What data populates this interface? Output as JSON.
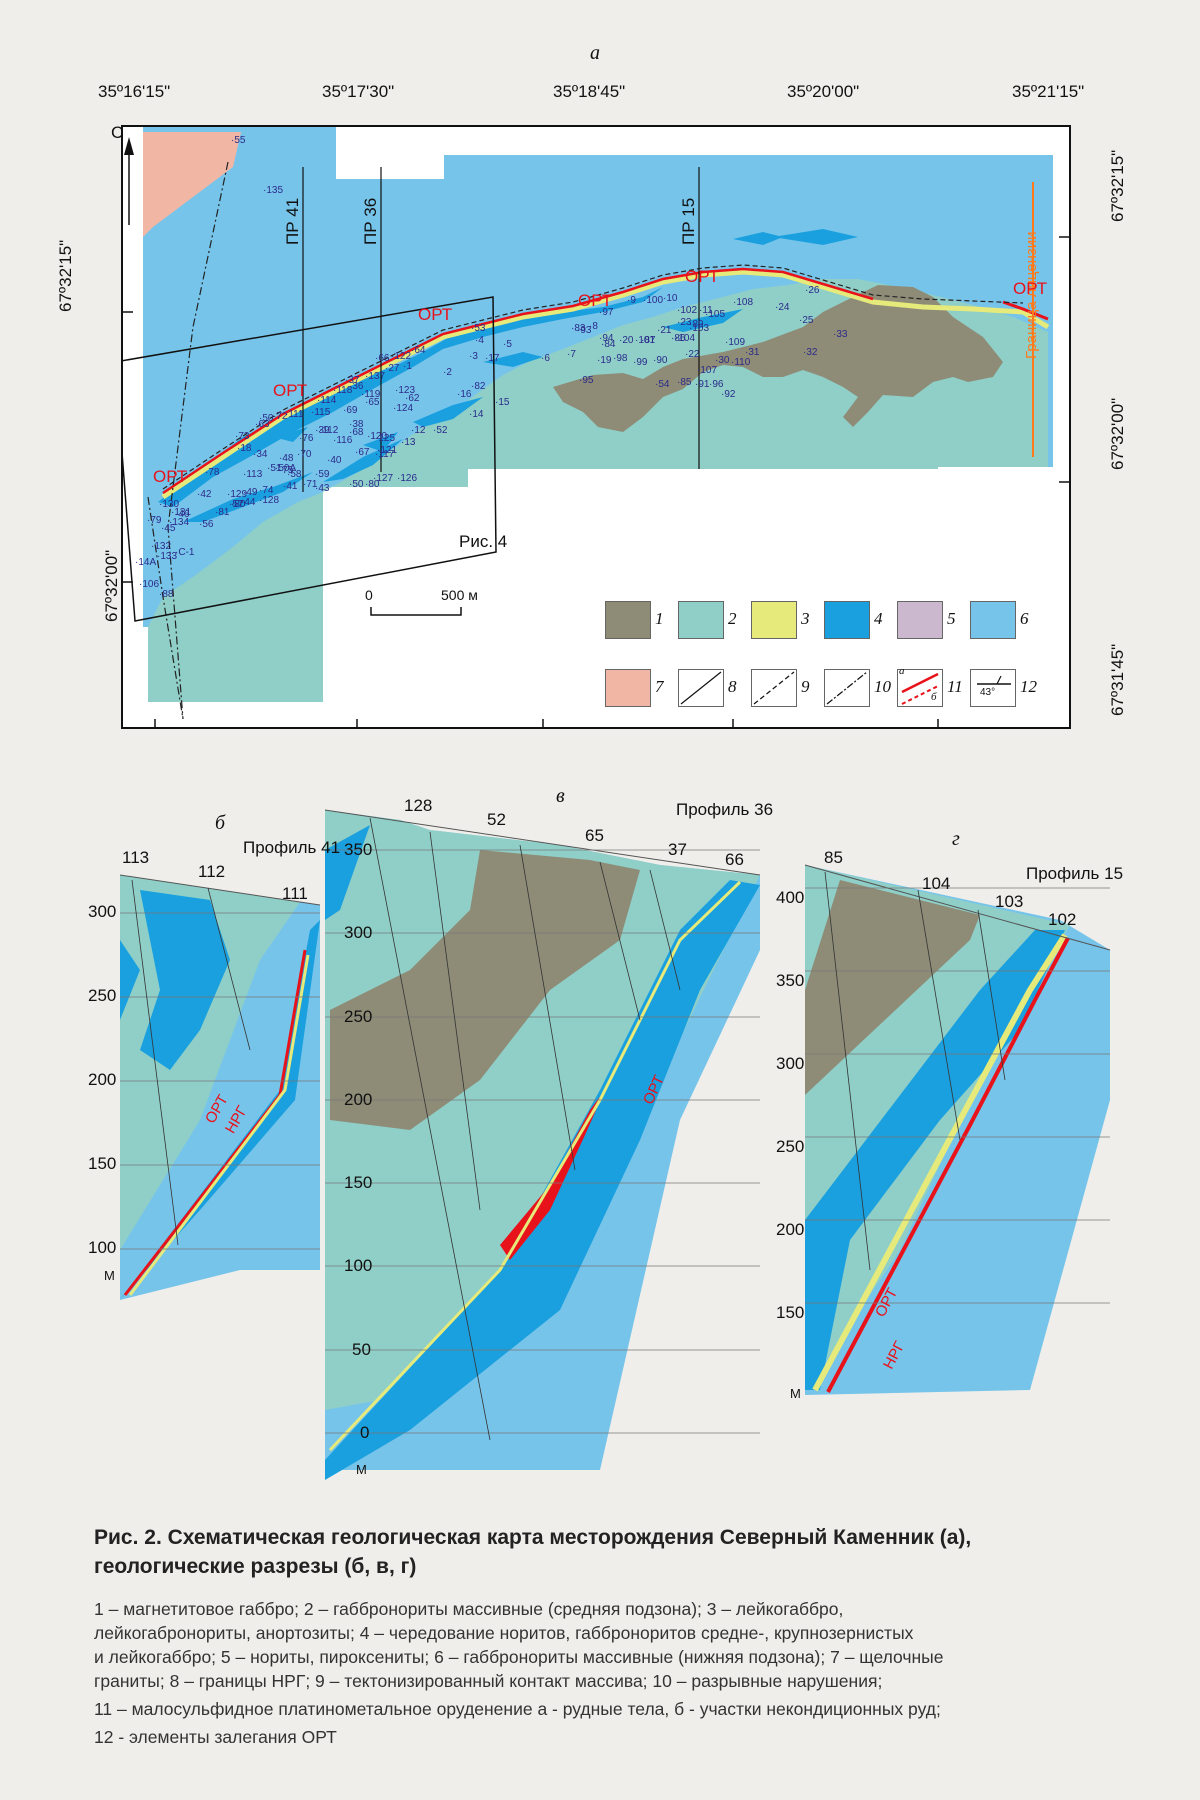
{
  "colors": {
    "magnetite_gabbro": "#8e8c77",
    "gabbronorite_middle": "#8fcfc8",
    "leucogabbro": "#e6ea7a",
    "alternation": "#1aa0df",
    "norites": "#cbb8cf",
    "gabbronorite_lower": "#77c4ea",
    "alkaline_granite": "#f2b7a4",
    "ore_red": "#e8121b",
    "license_orange": "#ff7a1a"
  },
  "map": {
    "panel_letter": "а",
    "lon_labels": [
      "35º16'15\"",
      "35º17'30\"",
      "35º18'45\"",
      "35º20'00\"",
      "35º21'15\""
    ],
    "lat_left": [
      "67º32'15\"",
      "67º32'00\""
    ],
    "lat_right": [
      "67º32'15\"",
      "67º32'00\"",
      "67º31'45\""
    ],
    "north": "С",
    "license_label": "Граница лицензии",
    "profiles": [
      "ПР 41",
      "ПР 36",
      "ПР 15"
    ],
    "ore_label": "ОРТ",
    "fig_ref": "Рис. 4",
    "scale_zero": "0",
    "scale_label": "500 м",
    "boreholes": [
      {
        "n": "55"
      },
      {
        "n": "135"
      },
      {
        "n": "26"
      },
      {
        "n": "25"
      },
      {
        "n": "33"
      },
      {
        "n": "24"
      },
      {
        "n": "32"
      },
      {
        "n": "31"
      },
      {
        "n": "108"
      },
      {
        "n": "109"
      },
      {
        "n": "110"
      },
      {
        "n": "30"
      },
      {
        "n": "92"
      },
      {
        "n": "96"
      },
      {
        "n": "91"
      },
      {
        "n": "85"
      },
      {
        "n": "54"
      },
      {
        "n": "107"
      },
      {
        "n": "22"
      },
      {
        "n": "86"
      },
      {
        "n": "89"
      },
      {
        "n": "23"
      },
      {
        "n": "105"
      },
      {
        "n": "103"
      },
      {
        "n": "104"
      },
      {
        "n": "102"
      },
      {
        "n": "11"
      },
      {
        "n": "21"
      },
      {
        "n": "100"
      },
      {
        "n": "87"
      },
      {
        "n": "10"
      },
      {
        "n": "90"
      },
      {
        "n": "99"
      },
      {
        "n": "98"
      },
      {
        "n": "19"
      },
      {
        "n": "101"
      },
      {
        "n": "20"
      },
      {
        "n": "9"
      },
      {
        "n": "97"
      },
      {
        "n": "8"
      },
      {
        "n": "93"
      },
      {
        "n": "83"
      },
      {
        "n": "94"
      },
      {
        "n": "84"
      },
      {
        "n": "7"
      },
      {
        "n": "95"
      },
      {
        "n": "6"
      },
      {
        "n": "5"
      },
      {
        "n": "4"
      },
      {
        "n": "53"
      },
      {
        "n": "3"
      },
      {
        "n": "17"
      },
      {
        "n": "2"
      },
      {
        "n": "82"
      },
      {
        "n": "16"
      },
      {
        "n": "15"
      },
      {
        "n": "14"
      },
      {
        "n": "64"
      },
      {
        "n": "122"
      },
      {
        "n": "66"
      },
      {
        "n": "1"
      },
      {
        "n": "27"
      },
      {
        "n": "137"
      },
      {
        "n": "123"
      },
      {
        "n": "62"
      },
      {
        "n": "124"
      },
      {
        "n": "65"
      },
      {
        "n": "119"
      },
      {
        "n": "37"
      },
      {
        "n": "36"
      },
      {
        "n": "118"
      },
      {
        "n": "114"
      },
      {
        "n": "115"
      },
      {
        "n": "69"
      },
      {
        "n": "38"
      },
      {
        "n": "68"
      },
      {
        "n": "120"
      },
      {
        "n": "39"
      },
      {
        "n": "111"
      },
      {
        "n": "72"
      },
      {
        "n": "50"
      },
      {
        "n": "63"
      },
      {
        "n": "73"
      },
      {
        "n": "18"
      },
      {
        "n": "76"
      },
      {
        "n": "70"
      },
      {
        "n": "112"
      },
      {
        "n": "116"
      },
      {
        "n": "67"
      },
      {
        "n": "121"
      },
      {
        "n": "125"
      },
      {
        "n": "12"
      },
      {
        "n": "13"
      },
      {
        "n": "52"
      },
      {
        "n": "117"
      },
      {
        "n": "40"
      },
      {
        "n": "48"
      },
      {
        "n": "34"
      },
      {
        "n": "113"
      },
      {
        "n": "51"
      },
      {
        "n": "58"
      },
      {
        "n": "50А"
      },
      {
        "n": "59"
      },
      {
        "n": "71"
      },
      {
        "n": "41"
      },
      {
        "n": "74"
      },
      {
        "n": "75"
      },
      {
        "n": "49"
      },
      {
        "n": "128"
      },
      {
        "n": "129"
      },
      {
        "n": "127"
      },
      {
        "n": "126"
      },
      {
        "n": "50"
      },
      {
        "n": "80"
      },
      {
        "n": "43"
      },
      {
        "n": "78"
      },
      {
        "n": "42"
      },
      {
        "n": "57"
      },
      {
        "n": "81"
      },
      {
        "n": "44"
      },
      {
        "n": "80"
      },
      {
        "n": "56"
      },
      {
        "n": "131"
      },
      {
        "n": "46"
      },
      {
        "n": "79"
      },
      {
        "n": "45"
      },
      {
        "n": "134"
      },
      {
        "n": "130"
      },
      {
        "n": "132"
      },
      {
        "n": "133"
      },
      {
        "n": "С-1"
      },
      {
        "n": "14А"
      },
      {
        "n": "106"
      },
      {
        "n": "88"
      }
    ],
    "legend": [
      "1",
      "2",
      "3",
      "4",
      "5",
      "6",
      "7",
      "8",
      "9",
      "10",
      "11",
      "12"
    ],
    "legend_sub_a": "а",
    "legend_sub_b": "б",
    "legend_angle": "43°"
  },
  "sections": [
    {
      "letter": "б",
      "title": "Профиль 41",
      "yticks": [
        "300",
        "250",
        "200",
        "150",
        "100"
      ],
      "base": "М",
      "holes": [
        "113",
        "112",
        "111"
      ],
      "ore": [
        "ОРТ",
        "НРГ"
      ]
    },
    {
      "letter": "в",
      "title": "Профиль 36",
      "yticks": [
        "350",
        "300",
        "250",
        "200",
        "150",
        "100",
        "50",
        "0"
      ],
      "base": "М",
      "holes": [
        "128",
        "52",
        "65",
        "37",
        "66"
      ],
      "ore": [
        "ОРТ"
      ]
    },
    {
      "letter": "г",
      "title": "Профиль 15",
      "yticks": [
        "400",
        "350",
        "300",
        "250",
        "200",
        "150"
      ],
      "base": "М",
      "holes": [
        "85",
        "104",
        "103",
        "102"
      ],
      "ore": [
        "ОРТ",
        "НРГ"
      ]
    }
  ],
  "caption": {
    "title_line1": "Рис. 2. Схематическая геологическая карта месторождения Северный Каменник (а),",
    "title_line2": "геологические разрезы (б, в, г)",
    "legend_lines": [
      "1 – магнетитовое габбро; 2 – габбронориты массивные (средняя подзона); 3 – лейкогаббро,",
      "лейкогабронориты, анортозиты; 4 – чередование норитов, габброноритов средне-, крупнозернистых",
      "и лейкогаббро; 5 – нориты, пироксениты; 6 – габбронориты массивные (нижняя подзона); 7 – щелочные",
      "граниты; 8 – границы НРГ; 9 – тектонизированный контакт массива; 10 – разрывные нарушения;",
      "11 – малосульфидное платинометальное оруденение а - рудные тела, б - участки некондиционных руд;",
      "12 - элементы залегания ОРТ"
    ]
  }
}
